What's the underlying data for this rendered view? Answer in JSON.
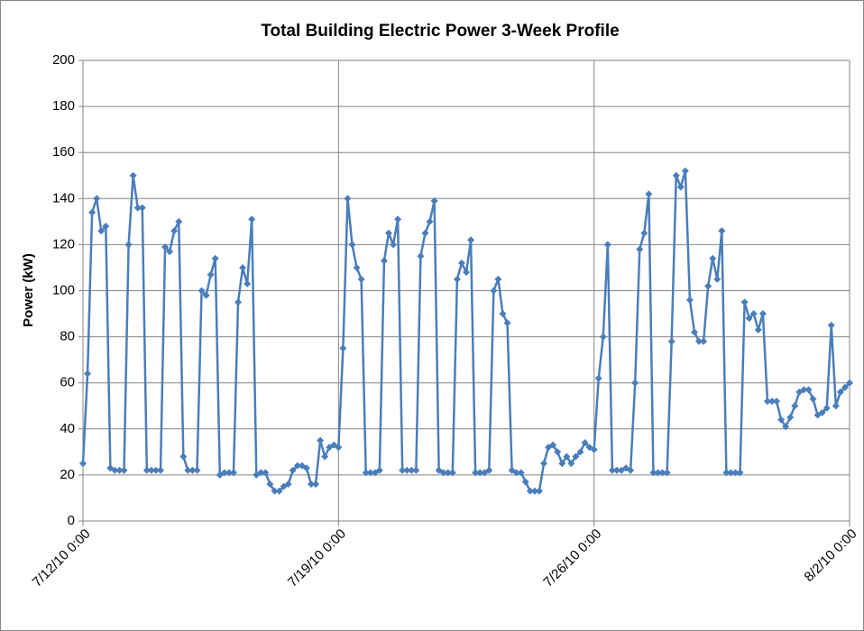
{
  "chart_data": {
    "type": "line",
    "title": "Total Building Electric Power 3-Week Profile",
    "y_label": "Power (kW)",
    "color": "#4a7ebb",
    "grid": true,
    "xlim": [
      "7/12/10 0:00",
      "8/2/10 0:00"
    ],
    "xticks": [
      "7/12/10 0:00",
      "7/19/10 0:00",
      "7/26/10 0:00",
      "8/2/10 0:00"
    ],
    "ylim": [
      0,
      200
    ],
    "yticks": [
      0,
      20,
      40,
      60,
      80,
      100,
      120,
      140,
      160,
      180,
      200
    ],
    "x": [
      "7/12/10 0:00",
      "7/12/10 3:00",
      "7/12/10 6:00",
      "7/12/10 9:00",
      "7/12/10 12:00",
      "7/12/10 15:00",
      "7/12/10 18:00",
      "7/12/10 21:00",
      "7/13/10 0:00",
      "7/13/10 3:00",
      "7/13/10 6:00",
      "7/13/10 9:00",
      "7/13/10 12:00",
      "7/13/10 15:00",
      "7/13/10 18:00",
      "7/13/10 21:00",
      "7/14/10 0:00",
      "7/14/10 3:00",
      "7/14/10 6:00",
      "7/14/10 9:00",
      "7/14/10 12:00",
      "7/14/10 15:00",
      "7/14/10 18:00",
      "7/14/10 21:00",
      "7/15/10 0:00",
      "7/15/10 3:00",
      "7/15/10 6:00",
      "7/15/10 9:00",
      "7/15/10 12:00",
      "7/15/10 15:00",
      "7/15/10 18:00",
      "7/15/10 21:00",
      "7/16/10 0:00",
      "7/16/10 3:00",
      "7/16/10 6:00",
      "7/16/10 9:00",
      "7/16/10 12:00",
      "7/16/10 15:00",
      "7/16/10 18:00",
      "7/16/10 21:00",
      "7/17/10 0:00",
      "7/17/10 3:00",
      "7/17/10 6:00",
      "7/17/10 9:00",
      "7/17/10 12:00",
      "7/17/10 15:00",
      "7/17/10 18:00",
      "7/17/10 21:00",
      "7/18/10 0:00",
      "7/18/10 3:00",
      "7/18/10 6:00",
      "7/18/10 9:00",
      "7/18/10 12:00",
      "7/18/10 15:00",
      "7/18/10 18:00",
      "7/18/10 21:00",
      "7/19/10 0:00",
      "7/19/10 3:00",
      "7/19/10 6:00",
      "7/19/10 9:00",
      "7/19/10 12:00",
      "7/19/10 15:00",
      "7/19/10 18:00",
      "7/19/10 21:00",
      "7/20/10 0:00",
      "7/20/10 3:00",
      "7/20/10 6:00",
      "7/20/10 9:00",
      "7/20/10 12:00",
      "7/20/10 15:00",
      "7/20/10 18:00",
      "7/20/10 21:00",
      "7/21/10 0:00",
      "7/21/10 3:00",
      "7/21/10 6:00",
      "7/21/10 9:00",
      "7/21/10 12:00",
      "7/21/10 15:00",
      "7/21/10 18:00",
      "7/21/10 21:00",
      "7/22/10 0:00",
      "7/22/10 3:00",
      "7/22/10 6:00",
      "7/22/10 9:00",
      "7/22/10 12:00",
      "7/22/10 15:00",
      "7/22/10 18:00",
      "7/22/10 21:00",
      "7/23/10 0:00",
      "7/23/10 3:00",
      "7/23/10 6:00",
      "7/23/10 9:00",
      "7/23/10 12:00",
      "7/23/10 15:00",
      "7/23/10 18:00",
      "7/23/10 21:00",
      "7/24/10 0:00",
      "7/24/10 3:00",
      "7/24/10 6:00",
      "7/24/10 9:00",
      "7/24/10 12:00",
      "7/24/10 15:00",
      "7/24/10 18:00",
      "7/24/10 21:00",
      "7/25/10 0:00",
      "7/25/10 3:00",
      "7/25/10 6:00",
      "7/25/10 9:00",
      "7/25/10 12:00",
      "7/25/10 15:00",
      "7/25/10 18:00",
      "7/25/10 21:00",
      "7/26/10 0:00",
      "7/26/10 3:00",
      "7/26/10 6:00",
      "7/26/10 9:00",
      "7/26/10 12:00",
      "7/26/10 15:00",
      "7/26/10 18:00",
      "7/26/10 21:00",
      "7/27/10 0:00",
      "7/27/10 3:00",
      "7/27/10 6:00",
      "7/27/10 9:00",
      "7/27/10 12:00",
      "7/27/10 15:00",
      "7/27/10 18:00",
      "7/27/10 21:00",
      "7/28/10 0:00",
      "7/28/10 3:00",
      "7/28/10 6:00",
      "7/28/10 9:00",
      "7/28/10 12:00",
      "7/28/10 15:00",
      "7/28/10 18:00",
      "7/28/10 21:00",
      "7/29/10 0:00",
      "7/29/10 3:00",
      "7/29/10 6:00",
      "7/29/10 9:00",
      "7/29/10 12:00",
      "7/29/10 15:00",
      "7/29/10 18:00",
      "7/29/10 21:00",
      "7/30/10 0:00",
      "7/30/10 3:00",
      "7/30/10 6:00",
      "7/30/10 9:00",
      "7/30/10 12:00",
      "7/30/10 15:00",
      "7/30/10 18:00",
      "7/30/10 21:00",
      "7/31/10 0:00",
      "7/31/10 3:00",
      "7/31/10 6:00",
      "7/31/10 9:00",
      "7/31/10 12:00",
      "7/31/10 15:00",
      "7/31/10 18:00",
      "7/31/10 21:00",
      "8/1/10 0:00",
      "8/1/10 3:00",
      "8/1/10 6:00",
      "8/1/10 9:00",
      "8/1/10 12:00",
      "8/1/10 15:00",
      "8/1/10 18:00",
      "8/1/10 21:00",
      "8/2/10 0:00"
    ],
    "values": [
      25,
      64,
      134,
      140,
      126,
      128,
      23,
      22,
      22,
      22,
      120,
      150,
      136,
      136,
      22,
      22,
      22,
      22,
      119,
      117,
      126,
      130,
      28,
      22,
      22,
      22,
      100,
      98,
      107,
      114,
      20,
      21,
      21,
      21,
      95,
      110,
      103,
      131,
      20,
      21,
      21,
      16,
      13,
      13,
      15,
      16,
      22,
      24,
      24,
      23,
      16,
      16,
      35,
      28,
      32,
      33,
      32,
      75,
      140,
      120,
      110,
      105,
      21,
      21,
      21,
      22,
      113,
      125,
      120,
      131,
      22,
      22,
      22,
      22,
      115,
      125,
      130,
      139,
      22,
      21,
      21,
      21,
      105,
      112,
      108,
      122,
      21,
      21,
      21,
      22,
      100,
      105,
      90,
      86,
      22,
      21,
      21,
      17,
      13,
      13,
      13,
      25,
      32,
      33,
      30,
      25,
      28,
      25,
      28,
      30,
      34,
      32,
      31,
      62,
      80,
      120,
      22,
      22,
      22,
      23,
      22,
      60,
      118,
      125,
      142,
      21,
      21,
      21,
      21,
      78,
      150,
      145,
      152,
      96,
      82,
      78,
      78,
      102,
      114,
      105,
      126,
      21,
      21,
      21,
      21,
      95,
      88,
      90,
      83,
      90,
      52,
      52,
      52,
      44,
      41,
      45,
      50,
      56,
      57,
      57,
      53,
      46,
      47,
      49,
      85,
      50,
      56,
      58,
      60
    ]
  }
}
